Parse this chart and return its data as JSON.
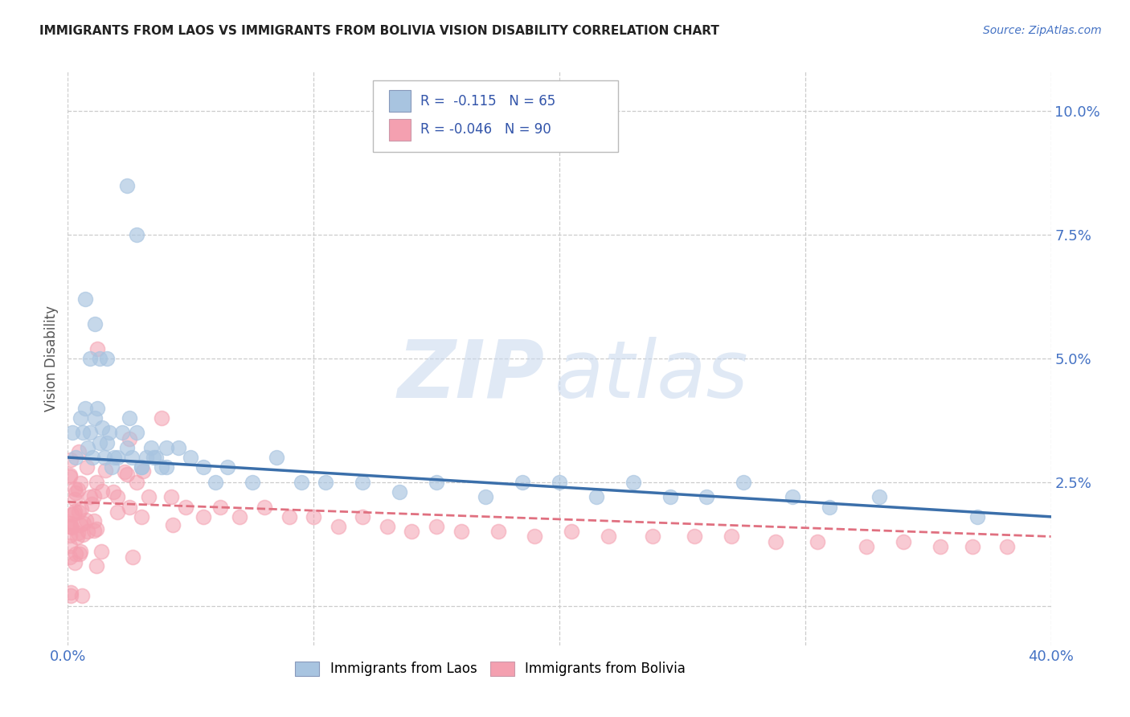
{
  "title": "IMMIGRANTS FROM LAOS VS IMMIGRANTS FROM BOLIVIA VISION DISABILITY CORRELATION CHART",
  "source": "Source: ZipAtlas.com",
  "ylabel": "Vision Disability",
  "xlim": [
    0.0,
    0.4
  ],
  "ylim": [
    -0.008,
    0.108
  ],
  "yticks": [
    0.0,
    0.025,
    0.05,
    0.075,
    0.1
  ],
  "ytick_labels": [
    "",
    "2.5%",
    "5.0%",
    "7.5%",
    "10.0%"
  ],
  "xticks": [
    0.0,
    0.1,
    0.2,
    0.3,
    0.4
  ],
  "xtick_labels_show": [
    "0.0%",
    "40.0%"
  ],
  "background_color": "#ffffff",
  "grid_color": "#cccccc",
  "laos_color": "#a8c4e0",
  "bolivia_color": "#f4a0b0",
  "laos_line_color": "#3b6faa",
  "bolivia_line_color": "#e07080",
  "laos_R": "-0.115",
  "laos_N": "65",
  "bolivia_R": "-0.046",
  "bolivia_N": "90",
  "legend_label_laos": "Immigrants from Laos",
  "legend_label_bolivia": "Immigrants from Bolivia",
  "laos_line_start_y": 0.03,
  "laos_line_end_y": 0.018,
  "bolivia_line_start_y": 0.021,
  "bolivia_line_end_y": 0.014
}
